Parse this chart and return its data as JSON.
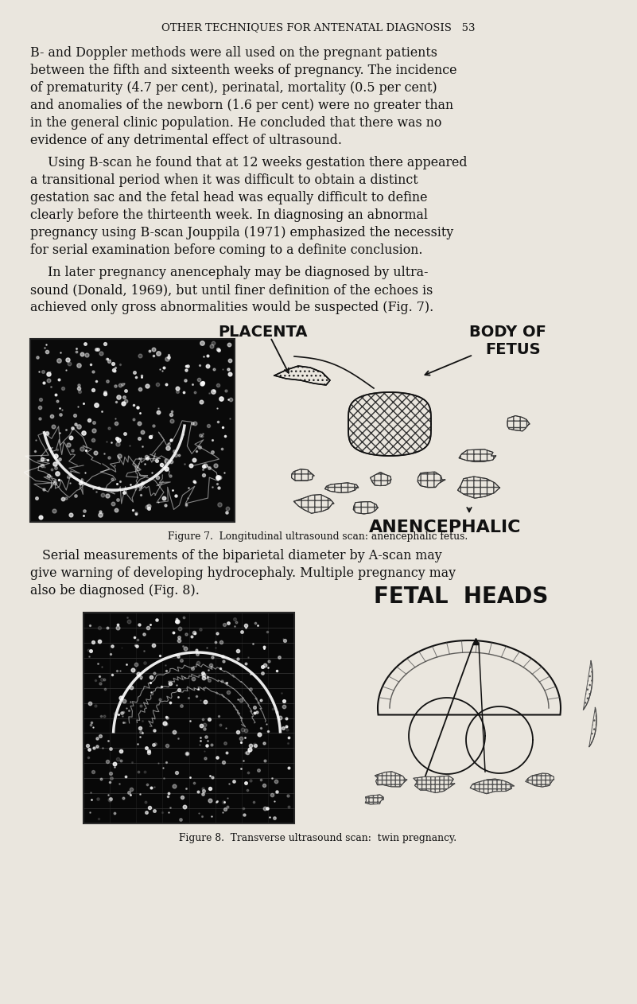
{
  "background_color": "#eae6de",
  "page_width": 8.01,
  "page_height": 12.62,
  "dpi": 100,
  "header_text": "OTHER TECHNIQUES FOR ANTENATAL DIAGNOSIS   53",
  "fig7_label_placenta": "PLACENTA",
  "fig7_label_body_of": "BODY OF",
  "fig7_label_fetus": "FETUS",
  "fig7_label_anencephalic": "ANENCEPHALIC",
  "fig7_caption": "Figure 7.  Longitudinal ultrasound scan: anencephalic fetus.",
  "fig8_label_fetal_heads": "FETAL  HEADS",
  "fig8_caption": "Figure 8.  Transverse ultrasound scan:  twin pregnancy."
}
